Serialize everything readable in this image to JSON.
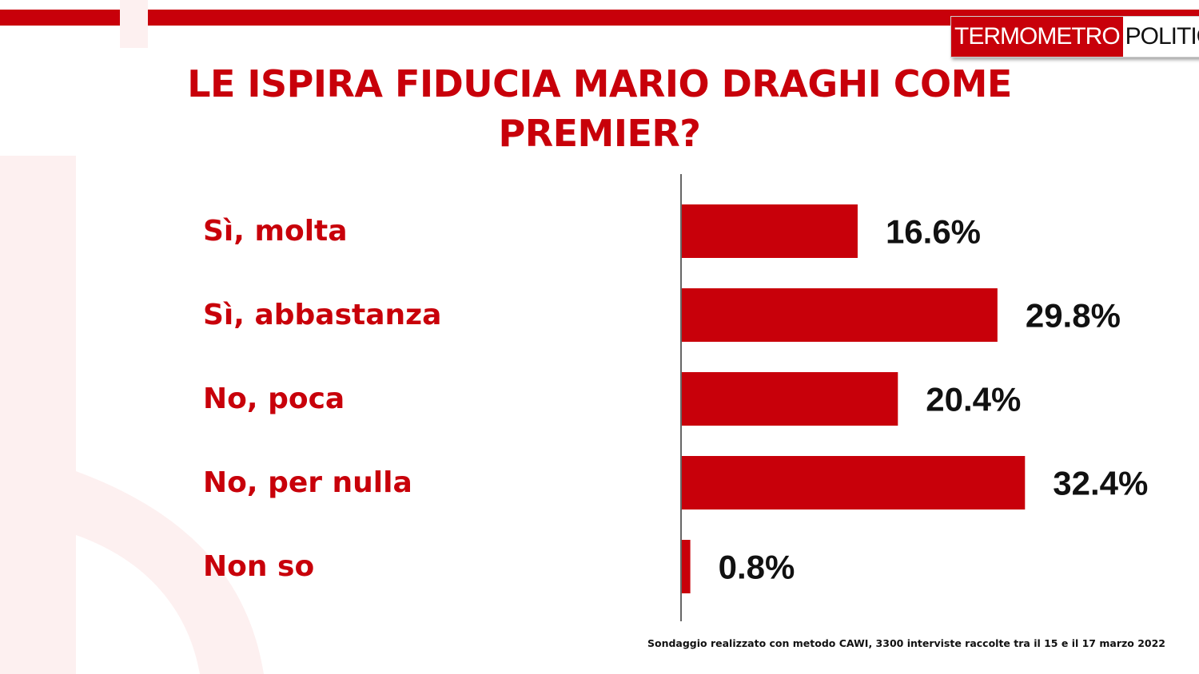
{
  "header": {
    "logo_part1": "TERMOMETRO",
    "logo_part2": "POLITICO",
    "title": "LE ISPIRA FIDUCIA MARIO DRAGHI COME PREMIER?"
  },
  "colors": {
    "accent": "#c8000a",
    "background": "#ffffff",
    "value_text": "#111111"
  },
  "chart_data": {
    "type": "bar",
    "orientation": "horizontal",
    "title": "LE ISPIRA FIDUCIA MARIO DRAGHI COME PREMIER?",
    "categories": [
      "Sì, molta",
      "Sì, abbastanza",
      "No, poca",
      "No, per nulla",
      "Non so"
    ],
    "values": [
      16.6,
      29.8,
      20.4,
      32.4,
      0.8
    ],
    "value_labels": [
      "16.6%",
      "29.8%",
      "20.4%",
      "32.4%",
      "0.8%"
    ],
    "unit": "%",
    "grid": false,
    "legend": "none"
  },
  "footnote": "Sondaggio realizzato con metodo CAWI, 3300 interviste raccolte tra il 15 e il 17 marzo 2022"
}
